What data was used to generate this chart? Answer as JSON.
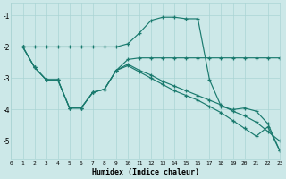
{
  "xlabel": "Humidex (Indice chaleur)",
  "bg_color": "#cce8e8",
  "grid_color": "#aad4d4",
  "line_color": "#1a7a6e",
  "xlim": [
    0,
    23
  ],
  "ylim": [
    -5.6,
    -0.6
  ],
  "yticks": [
    -5,
    -4,
    -3,
    -2,
    -1
  ],
  "xticks": [
    0,
    1,
    2,
    3,
    4,
    5,
    6,
    7,
    8,
    9,
    10,
    11,
    12,
    13,
    14,
    15,
    16,
    17,
    18,
    19,
    20,
    21,
    22,
    23
  ],
  "lines": [
    {
      "x": [
        1,
        2,
        3,
        4,
        5,
        6,
        7,
        8,
        9,
        10,
        11,
        12,
        13,
        14,
        15,
        16,
        17,
        18,
        19,
        20,
        21,
        22,
        23
      ],
      "y": [
        -2.0,
        -2.0,
        -2.0,
        -2.0,
        -2.0,
        -2.0,
        -2.0,
        -2.0,
        -2.0,
        -1.9,
        -1.55,
        -1.15,
        -1.05,
        -1.05,
        -1.1,
        -1.1,
        -3.05,
        -3.9,
        -4.0,
        -3.95,
        -4.05,
        -4.45,
        -5.3
      ]
    },
    {
      "x": [
        1,
        2,
        3,
        4,
        5,
        6,
        7,
        8,
        9,
        10,
        11,
        12,
        13,
        14,
        15,
        16,
        17,
        18,
        19,
        20,
        21,
        22,
        23
      ],
      "y": [
        -2.0,
        -2.65,
        -3.05,
        -3.05,
        -3.95,
        -3.95,
        -3.45,
        -3.35,
        -2.75,
        -2.4,
        -2.35,
        -2.35,
        -2.35,
        -2.35,
        -2.35,
        -2.35,
        -2.35,
        -2.35,
        -2.35,
        -2.35,
        -2.35,
        -2.35,
        -2.35
      ]
    },
    {
      "x": [
        1,
        2,
        3,
        4,
        5,
        6,
        7,
        8,
        9,
        10,
        11,
        12,
        13,
        14,
        15,
        16,
        17,
        18,
        19,
        20,
        21,
        22,
        23
      ],
      "y": [
        -2.0,
        -2.65,
        -3.05,
        -3.05,
        -3.95,
        -3.95,
        -3.45,
        -3.35,
        -2.75,
        -2.55,
        -2.75,
        -2.9,
        -3.1,
        -3.25,
        -3.4,
        -3.55,
        -3.7,
        -3.85,
        -4.05,
        -4.2,
        -4.4,
        -4.7,
        -5.0
      ]
    },
    {
      "x": [
        1,
        2,
        3,
        4,
        5,
        6,
        7,
        8,
        9,
        10,
        11,
        12,
        13,
        14,
        15,
        16,
        17,
        18,
        19,
        20,
        21,
        22,
        23
      ],
      "y": [
        -2.0,
        -2.65,
        -3.05,
        -3.05,
        -3.95,
        -3.95,
        -3.45,
        -3.35,
        -2.75,
        -2.6,
        -2.8,
        -3.0,
        -3.2,
        -3.4,
        -3.55,
        -3.7,
        -3.9,
        -4.1,
        -4.35,
        -4.6,
        -4.85,
        -4.55,
        -5.3
      ]
    }
  ]
}
